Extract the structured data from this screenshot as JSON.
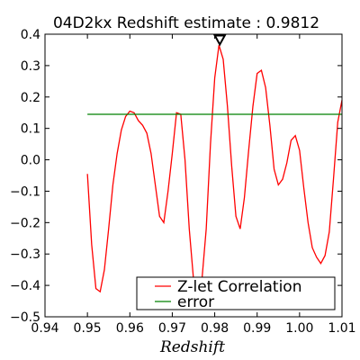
{
  "chart_data": {
    "type": "line",
    "title": "04D2kx Redshift estimate : 0.9812",
    "xlabel": "Redshift",
    "ylabel": "",
    "xlim": [
      0.94,
      1.01
    ],
    "ylim": [
      -0.5,
      0.4
    ],
    "x_ticks": [
      0.94,
      0.95,
      0.96,
      0.97,
      0.98,
      0.99,
      1.0,
      1.01
    ],
    "x_tick_labels": [
      "0.94",
      "0.95",
      "0.96",
      "0.97",
      "0.98",
      "0.99",
      "1.00",
      "1.01"
    ],
    "y_ticks": [
      -0.5,
      -0.4,
      -0.3,
      -0.2,
      -0.1,
      0.0,
      0.1,
      0.2,
      0.3,
      0.4
    ],
    "y_tick_labels": [
      "−0.5",
      "−0.4",
      "−0.3",
      "−0.2",
      "−0.1",
      "0.0",
      "0.1",
      "0.2",
      "0.3",
      "0.4"
    ],
    "grid": false,
    "legend_position": "lower-right",
    "colors": {
      "correlation": "#ff0000",
      "error": "#008000",
      "marker": "#000000"
    },
    "series": [
      {
        "name": "Z-let Correlation",
        "x": [
          0.95,
          0.951,
          0.952,
          0.953,
          0.954,
          0.955,
          0.956,
          0.957,
          0.958,
          0.959,
          0.96,
          0.961,
          0.962,
          0.963,
          0.964,
          0.965,
          0.966,
          0.967,
          0.968,
          0.969,
          0.97,
          0.971,
          0.972,
          0.973,
          0.974,
          0.975,
          0.976,
          0.977,
          0.978,
          0.979,
          0.98,
          0.981,
          0.982,
          0.983,
          0.984,
          0.985,
          0.986,
          0.987,
          0.988,
          0.989,
          0.99,
          0.991,
          0.992,
          0.993,
          0.994,
          0.995,
          0.996,
          0.997,
          0.998,
          0.999,
          1.0,
          1.001,
          1.002,
          1.003,
          1.004,
          1.005,
          1.006,
          1.007,
          1.008,
          1.009,
          1.01
        ],
        "y": [
          -0.045,
          -0.27,
          -0.41,
          -0.42,
          -0.35,
          -0.22,
          -0.08,
          0.02,
          0.095,
          0.138,
          0.155,
          0.15,
          0.125,
          0.11,
          0.085,
          0.02,
          -0.08,
          -0.18,
          -0.2,
          -0.1,
          0.02,
          0.15,
          0.145,
          0.0,
          -0.22,
          -0.38,
          -0.41,
          -0.38,
          -0.22,
          0.05,
          0.26,
          0.365,
          0.32,
          0.17,
          -0.02,
          -0.18,
          -0.22,
          -0.12,
          0.03,
          0.17,
          0.275,
          0.285,
          0.23,
          0.11,
          -0.03,
          -0.08,
          -0.062,
          -0.01,
          0.062,
          0.077,
          0.03,
          -0.09,
          -0.2,
          -0.28,
          -0.31,
          -0.33,
          -0.305,
          -0.23,
          -0.06,
          0.12,
          0.19
        ]
      },
      {
        "name": "error",
        "x": [
          0.95,
          1.01
        ],
        "y": [
          0.145,
          0.145
        ]
      }
    ],
    "marker": {
      "x": 0.9812,
      "y": 0.37,
      "shape": "triangle-down"
    }
  }
}
